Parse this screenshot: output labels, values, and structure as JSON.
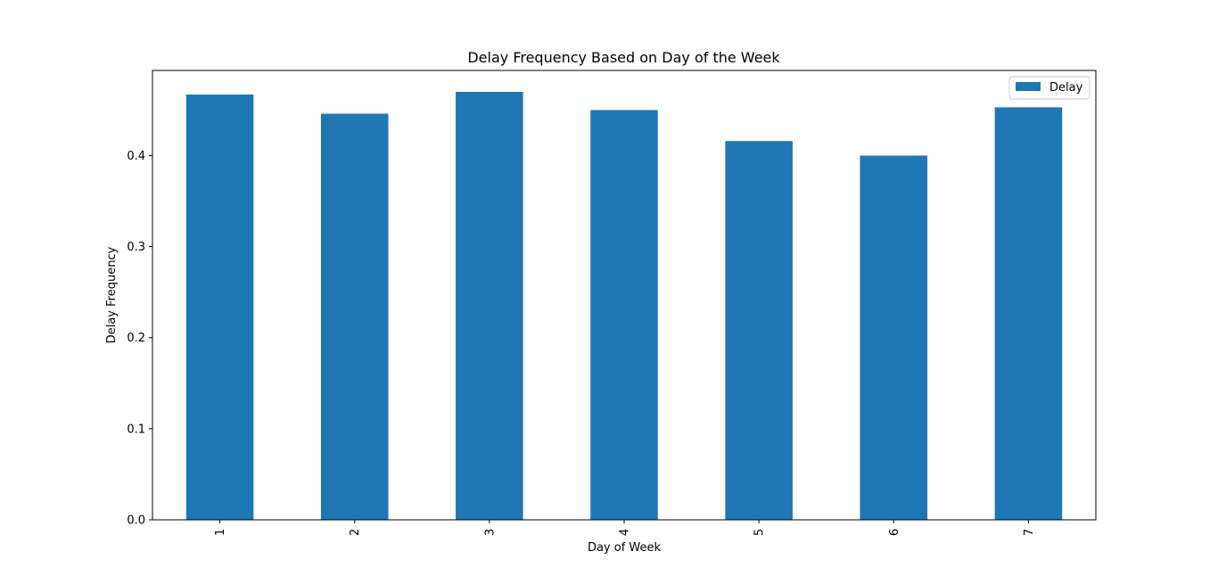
{
  "chart_data": {
    "type": "bar",
    "title": "Delay Frequency Based on Day of the Week",
    "xlabel": "Day of Week",
    "ylabel": "Delay Frequency",
    "categories": [
      "1",
      "2",
      "3",
      "4",
      "5",
      "6",
      "7"
    ],
    "series": [
      {
        "name": "Delay",
        "color": "#1f77b4",
        "values": [
          0.467,
          0.446,
          0.47,
          0.45,
          0.416,
          0.4,
          0.453
        ]
      }
    ],
    "ylim": [
      0,
      0.4935
    ],
    "yticks": [
      0.0,
      0.1,
      0.2,
      0.3,
      0.4
    ],
    "ytick_labels": [
      "0.0",
      "0.1",
      "0.2",
      "0.3",
      "0.4"
    ],
    "grid": false,
    "legend": "top-right"
  }
}
